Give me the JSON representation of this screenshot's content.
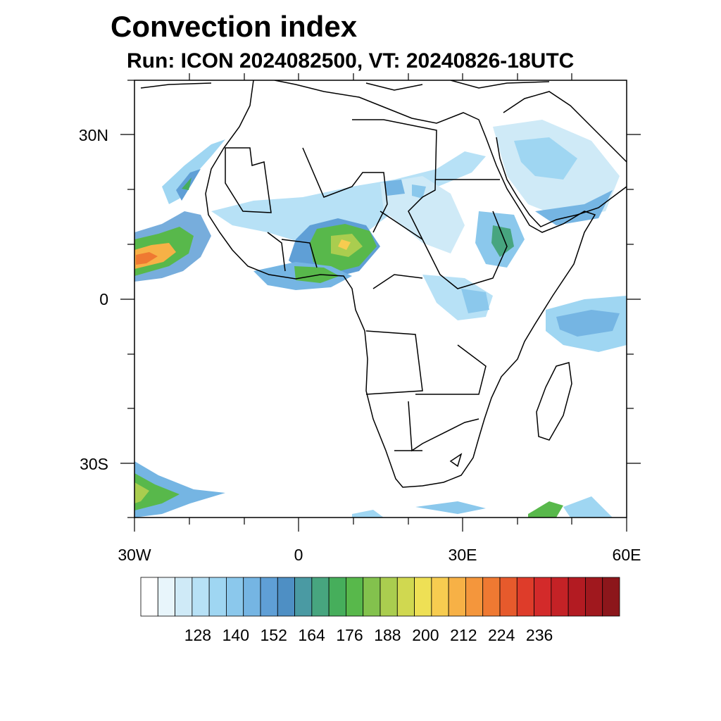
{
  "title": "Convection index",
  "subtitle": "Run: ICON 2024082500,  VT: 20240826-18UTC",
  "map": {
    "lon_range": [
      -30,
      60
    ],
    "lat_range": [
      -40,
      40
    ],
    "lat_ticks": [
      {
        "value": 30,
        "label": "30N"
      },
      {
        "value": 0,
        "label": "0"
      },
      {
        "value": -30,
        "label": "30S"
      }
    ],
    "lon_ticks": [
      {
        "value": -30,
        "label": "30W"
      },
      {
        "value": 0,
        "label": "0"
      },
      {
        "value": 30,
        "label": "30E"
      },
      {
        "value": 60,
        "label": "60E"
      }
    ]
  },
  "colorbar": {
    "colors": [
      "#ffffff",
      "#e8f5fb",
      "#cfeaf7",
      "#b7e1f6",
      "#9fd6f2",
      "#8bc8ec",
      "#75b5e3",
      "#5f9fd6",
      "#4e8fc4",
      "#4a9aa3",
      "#47a57f",
      "#46ae5b",
      "#58b84b",
      "#83c24d",
      "#aacd4f",
      "#d0d850",
      "#eee055",
      "#f7cc50",
      "#f7b146",
      "#f4963c",
      "#ef7932",
      "#e65a2c",
      "#de3c2a",
      "#d32a2a",
      "#c42226",
      "#b31b22",
      "#a0181e",
      "#8c161b"
    ],
    "labels": [
      "128",
      "140",
      "152",
      "164",
      "176",
      "188",
      "200",
      "212",
      "224",
      "236"
    ],
    "label_positions": [
      2,
      4,
      6,
      8,
      10,
      12,
      14,
      16,
      18,
      20
    ]
  }
}
